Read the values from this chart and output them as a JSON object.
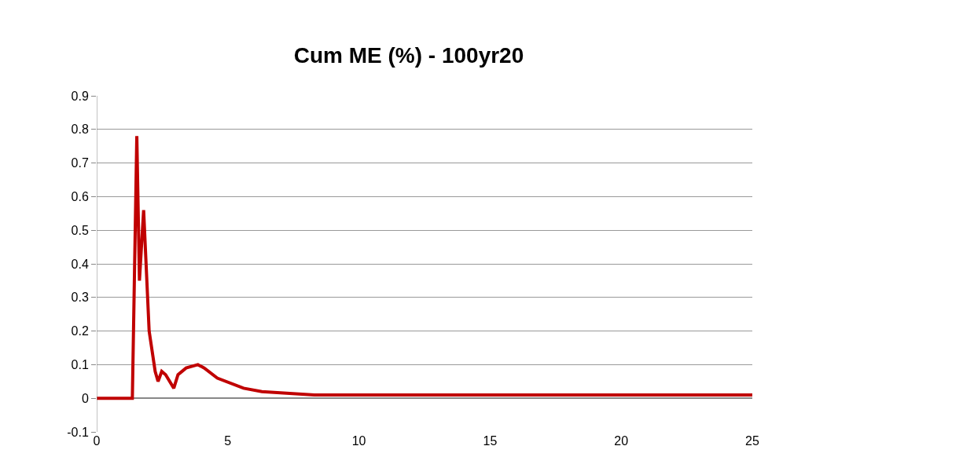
{
  "chart_data": {
    "type": "line",
    "title": "Cum ME (%) - 100yr20",
    "x": [
      0,
      1.36,
      1.53,
      1.63,
      1.79,
      2.0,
      2.23,
      2.34,
      2.48,
      2.63,
      2.94,
      3.1,
      3.41,
      3.86,
      4.1,
      4.6,
      5.6,
      6.3,
      8.3,
      9.7,
      10.8,
      15,
      19,
      25
    ],
    "series": [
      {
        "color": "#c00000",
        "values": [
          0,
          0,
          0.78,
          0.35,
          0.56,
          0.2,
          0.08,
          0.05,
          0.08,
          0.07,
          0.03,
          0.07,
          0.09,
          0.1,
          0.09,
          0.06,
          0.03,
          0.02,
          0.01,
          0.01,
          0.01,
          0.01,
          0.01,
          0.01
        ]
      }
    ],
    "xlim": [
      0,
      25
    ],
    "xticks": [
      0,
      5,
      10,
      15,
      20,
      25
    ],
    "ylim": [
      -0.1,
      0.9
    ],
    "yticks": [
      -0.1,
      0,
      0.1,
      0.2,
      0.3,
      0.4,
      0.5,
      0.6,
      0.7,
      0.8,
      0.9
    ],
    "grid": "y",
    "marker": "none",
    "line_style": "solid"
  }
}
